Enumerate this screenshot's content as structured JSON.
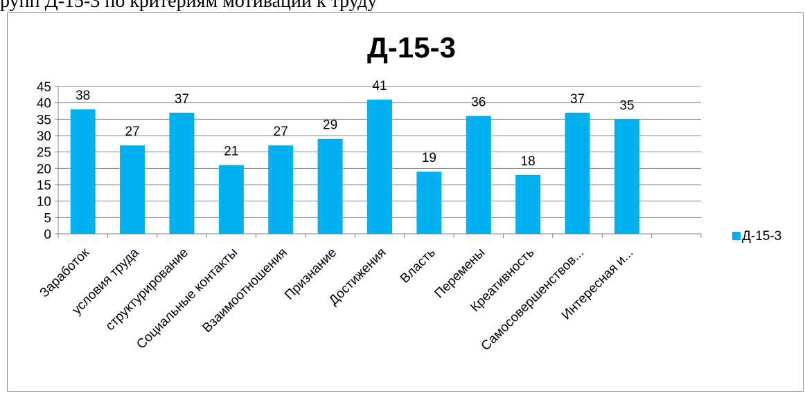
{
  "caption_text": "рупп Д-15-3 по критериям мотивации к труду",
  "chart_data": {
    "type": "bar",
    "title": "Д-15-3",
    "categories": [
      "Заработок",
      "условия труда",
      "структурирование",
      "Социальные контакты",
      "Взаимоотношения",
      "Признание",
      "Достижения",
      "Власть",
      "Перемены",
      "Креативность",
      "Самосовершенствов...",
      "Интересная и..."
    ],
    "series": [
      {
        "name": "Д-15-3",
        "values": [
          38,
          27,
          37,
          21,
          27,
          29,
          41,
          19,
          36,
          18,
          37,
          35
        ]
      }
    ],
    "ylim": [
      0,
      45
    ],
    "yticks": [
      0,
      5,
      10,
      15,
      20,
      25,
      30,
      35,
      40,
      45
    ],
    "grid": true,
    "data_labels": true,
    "legend_position": "right",
    "colors": {
      "bar": "#00B0F0",
      "grid": "#868686",
      "axis": "#868686"
    }
  }
}
